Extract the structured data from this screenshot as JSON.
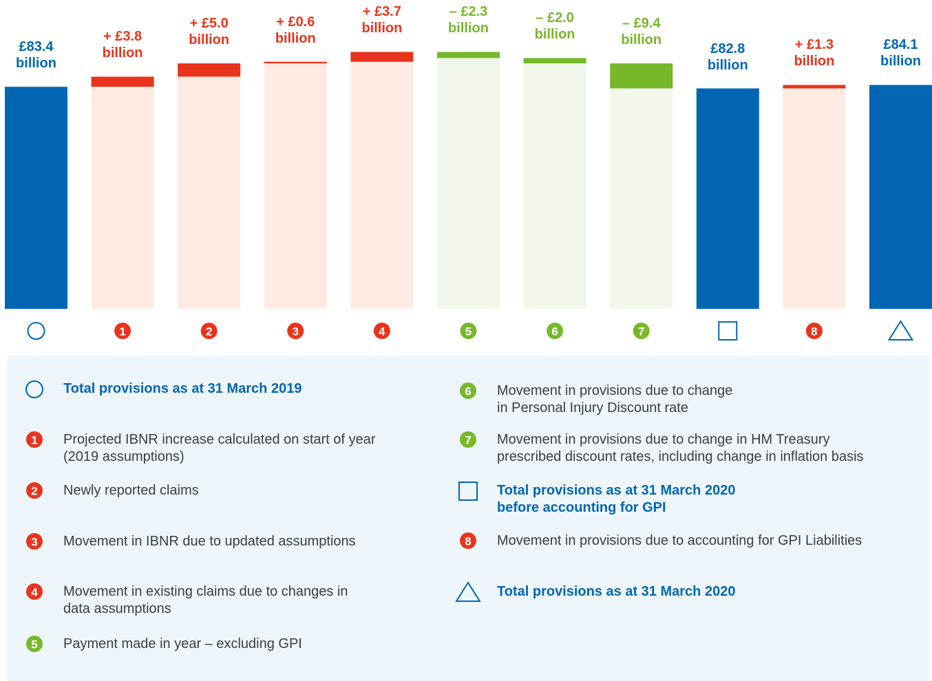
{
  "chart_data": {
    "type": "waterfall",
    "categories": [
      null,
      "1",
      "2",
      "3",
      "4",
      "5",
      "6",
      "7",
      null,
      "8",
      null
    ],
    "measure": [
      "total",
      "relative",
      "relative",
      "relative",
      "relative",
      "relative",
      "relative",
      "relative",
      "total",
      "relative",
      "total"
    ],
    "values": [
      83.4,
      3.8,
      5.0,
      0.6,
      3.7,
      -2.3,
      -2.0,
      -9.4,
      82.8,
      1.3,
      84.1
    ],
    "value_labels": [
      "£83.4 billion",
      "+ £3.8 billion",
      "+ £5.0 billion",
      "+ £0.6 billion",
      "+ £3.7 billion",
      "– £2.3 billion",
      "– £2.0 billion",
      "– £9.4 billion",
      "£82.8 billion",
      "+ £1.3 billion",
      "£84.1 billion"
    ],
    "shapes": [
      "circle",
      null,
      null,
      null,
      null,
      null,
      null,
      null,
      "square",
      null,
      "triangle"
    ],
    "ylim": [
      0,
      116
    ],
    "colors": {
      "total": "#0066b3",
      "increase": "#e8341c",
      "decrease": "#76b82a",
      "increase_fill": "#fdebe3",
      "decrease_fill": "#f1f7ea"
    },
    "legend": [
      {
        "shape": "circle",
        "text": "Total provisions as at 31 March 2019"
      },
      {
        "marker": "1",
        "color": "#e8341c",
        "text": "Projected IBNR increase calculated on start of year\n(2019 assumptions)"
      },
      {
        "marker": "2",
        "color": "#e8341c",
        "text": "Newly reported claims"
      },
      {
        "marker": "3",
        "color": "#e8341c",
        "text": "Movement in IBNR due to updated assumptions"
      },
      {
        "marker": "4",
        "color": "#e8341c",
        "text": "Movement in existing claims due to changes in\ndata assumptions"
      },
      {
        "marker": "5",
        "color": "#76b82a",
        "text": "Payment made in year – excluding GPI"
      },
      {
        "marker": "6",
        "color": "#76b82a",
        "text": "Movement in provisions due to change\nin Personal Injury Discount rate"
      },
      {
        "marker": "7",
        "color": "#76b82a",
        "text": "Movement in provisions due to change in HM Treasury\nprescribed discount rates, including change in inflation basis"
      },
      {
        "shape": "square",
        "text": "Total provisions as at 31 March 2020\nbefore accounting for GPI"
      },
      {
        "marker": "8",
        "color": "#e8341c",
        "text": "Movement in provisions due to accounting for GPI Liabilities"
      },
      {
        "shape": "triangle",
        "text": "Total provisions as at 31 March 2020"
      }
    ]
  }
}
